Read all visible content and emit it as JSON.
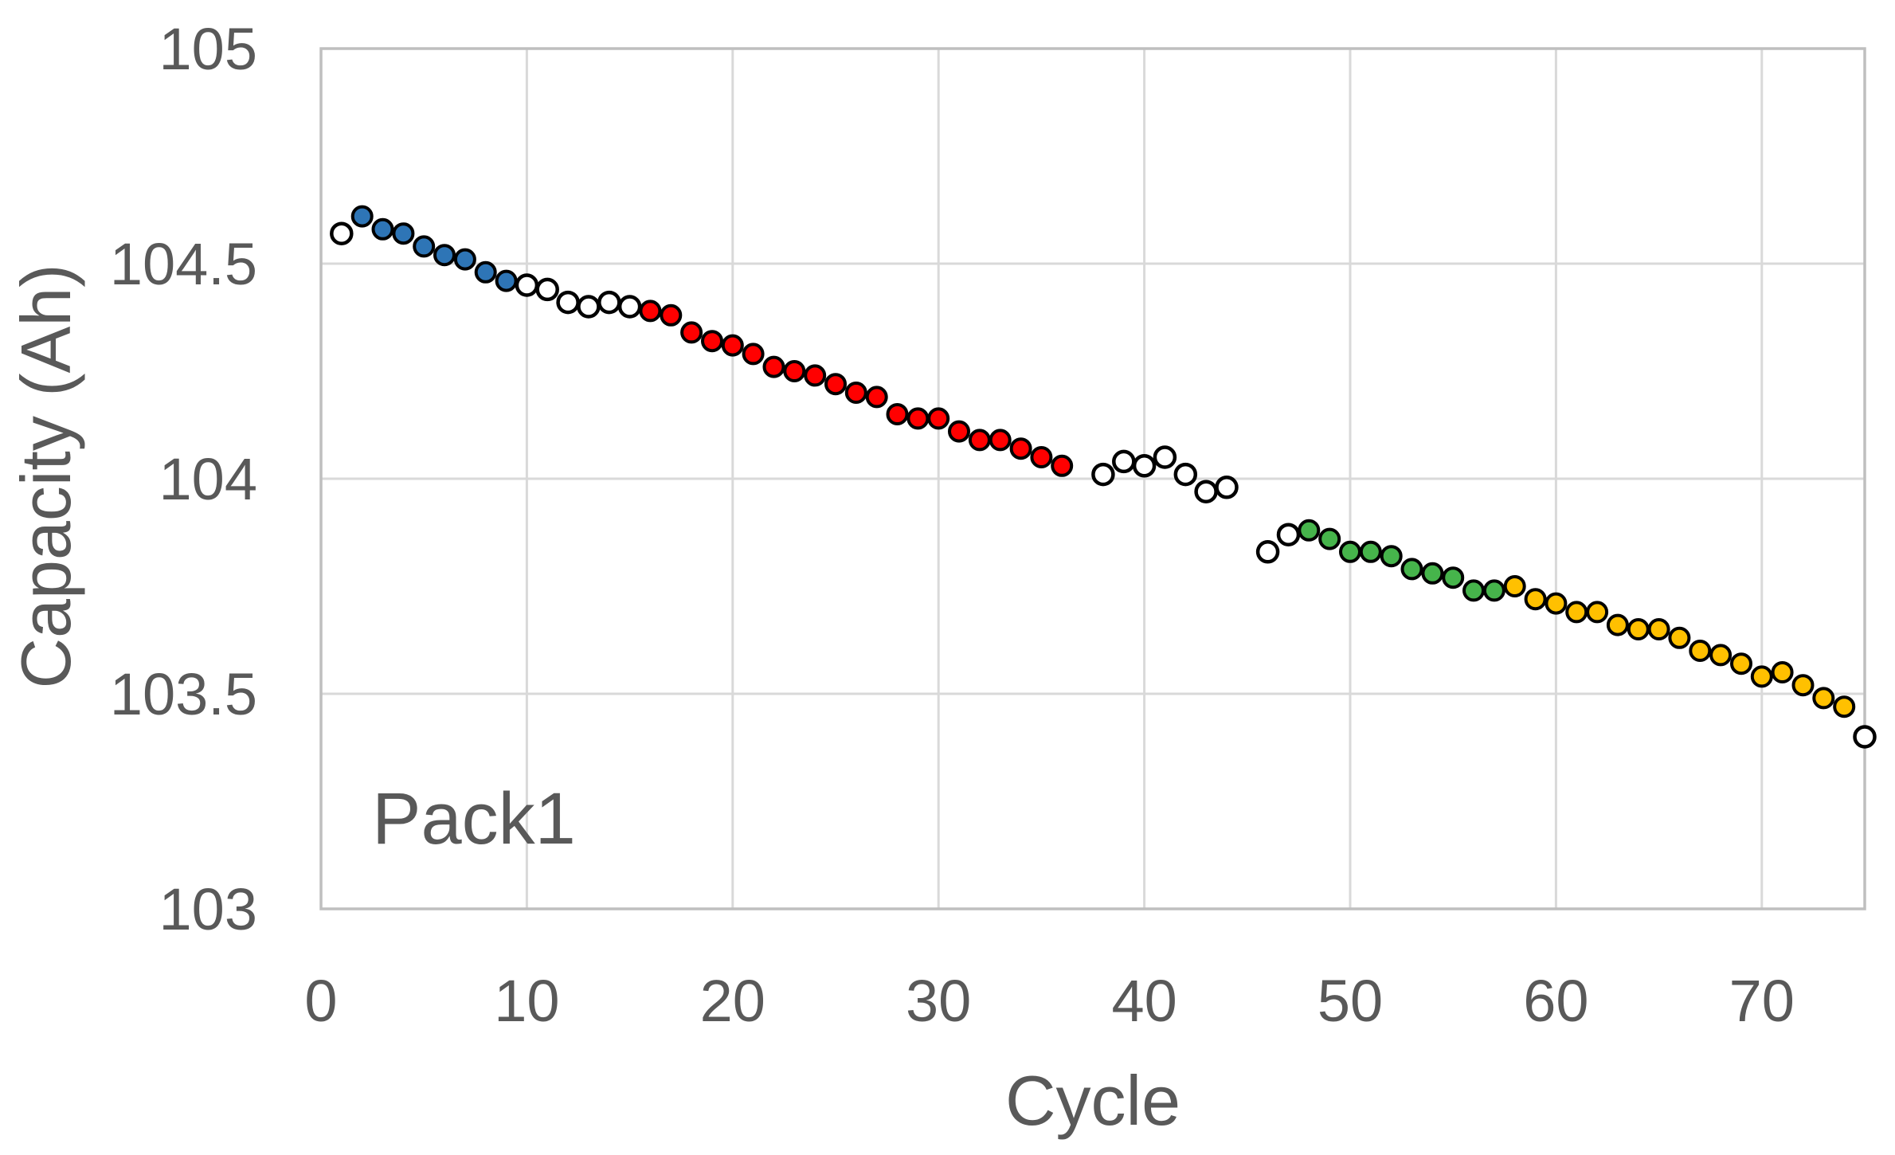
{
  "chart_data": {
    "type": "scatter",
    "title": "",
    "xlabel": "Cycle",
    "ylabel": "Capacity (Ah)",
    "annotation": "Pack1",
    "xlim": [
      0,
      75
    ],
    "ylim": [
      103,
      105
    ],
    "xticks": [
      0,
      10,
      20,
      30,
      40,
      50,
      60,
      70
    ],
    "xtick_labels": [
      "0",
      "10",
      "20",
      "30",
      "40",
      "50",
      "60",
      "70"
    ],
    "yticks": [
      103,
      103.5,
      104,
      104.5,
      105
    ],
    "ytick_labels": [
      "103",
      "103.5",
      "104",
      "104.5",
      "105"
    ],
    "grid": true,
    "grid_color": "#d9d9d9",
    "border_color": "#bfbfbf",
    "marker_outline": "#000000",
    "series": [
      {
        "name": "open-circles",
        "color": "#ffffff",
        "points": [
          [
            1,
            104.57
          ],
          [
            10,
            104.45
          ],
          [
            11,
            104.44
          ],
          [
            12,
            104.41
          ],
          [
            13,
            104.4
          ],
          [
            14,
            104.41
          ],
          [
            15,
            104.4
          ],
          [
            38,
            104.01
          ],
          [
            39,
            104.04
          ],
          [
            40,
            104.03
          ],
          [
            41,
            104.05
          ],
          [
            42,
            104.01
          ],
          [
            43,
            103.97
          ],
          [
            44,
            103.98
          ],
          [
            46,
            103.83
          ],
          [
            47,
            103.87
          ],
          [
            75,
            103.4
          ]
        ]
      },
      {
        "name": "blue-segment",
        "color": "#2e75b6",
        "points": [
          [
            2,
            104.61
          ],
          [
            3,
            104.58
          ],
          [
            4,
            104.57
          ],
          [
            5,
            104.54
          ],
          [
            6,
            104.52
          ],
          [
            7,
            104.51
          ],
          [
            8,
            104.48
          ],
          [
            9,
            104.46
          ]
        ]
      },
      {
        "name": "red-segment",
        "color": "#ff0000",
        "points": [
          [
            16,
            104.39
          ],
          [
            17,
            104.38
          ],
          [
            18,
            104.34
          ],
          [
            19,
            104.32
          ],
          [
            20,
            104.31
          ],
          [
            21,
            104.29
          ],
          [
            22,
            104.26
          ],
          [
            23,
            104.25
          ],
          [
            24,
            104.24
          ],
          [
            25,
            104.22
          ],
          [
            26,
            104.2
          ],
          [
            27,
            104.19
          ],
          [
            28,
            104.15
          ],
          [
            29,
            104.14
          ],
          [
            30,
            104.14
          ],
          [
            31,
            104.11
          ],
          [
            32,
            104.09
          ],
          [
            33,
            104.09
          ],
          [
            34,
            104.07
          ],
          [
            35,
            104.05
          ],
          [
            36,
            104.03
          ]
        ]
      },
      {
        "name": "green-segment",
        "color": "#46b44b",
        "points": [
          [
            48,
            103.88
          ],
          [
            49,
            103.86
          ],
          [
            50,
            103.83
          ],
          [
            51,
            103.83
          ],
          [
            52,
            103.82
          ],
          [
            53,
            103.79
          ],
          [
            54,
            103.78
          ],
          [
            55,
            103.77
          ],
          [
            56,
            103.74
          ],
          [
            57,
            103.74
          ]
        ]
      },
      {
        "name": "gold-segment",
        "color": "#ffc000",
        "points": [
          [
            58,
            103.75
          ],
          [
            59,
            103.72
          ],
          [
            60,
            103.71
          ],
          [
            61,
            103.69
          ],
          [
            62,
            103.69
          ],
          [
            63,
            103.66
          ],
          [
            64,
            103.65
          ],
          [
            65,
            103.65
          ],
          [
            66,
            103.63
          ],
          [
            67,
            103.6
          ],
          [
            68,
            103.59
          ],
          [
            69,
            103.57
          ],
          [
            70,
            103.54
          ],
          [
            71,
            103.55
          ],
          [
            72,
            103.52
          ],
          [
            73,
            103.49
          ],
          [
            74,
            103.47
          ]
        ]
      }
    ]
  }
}
